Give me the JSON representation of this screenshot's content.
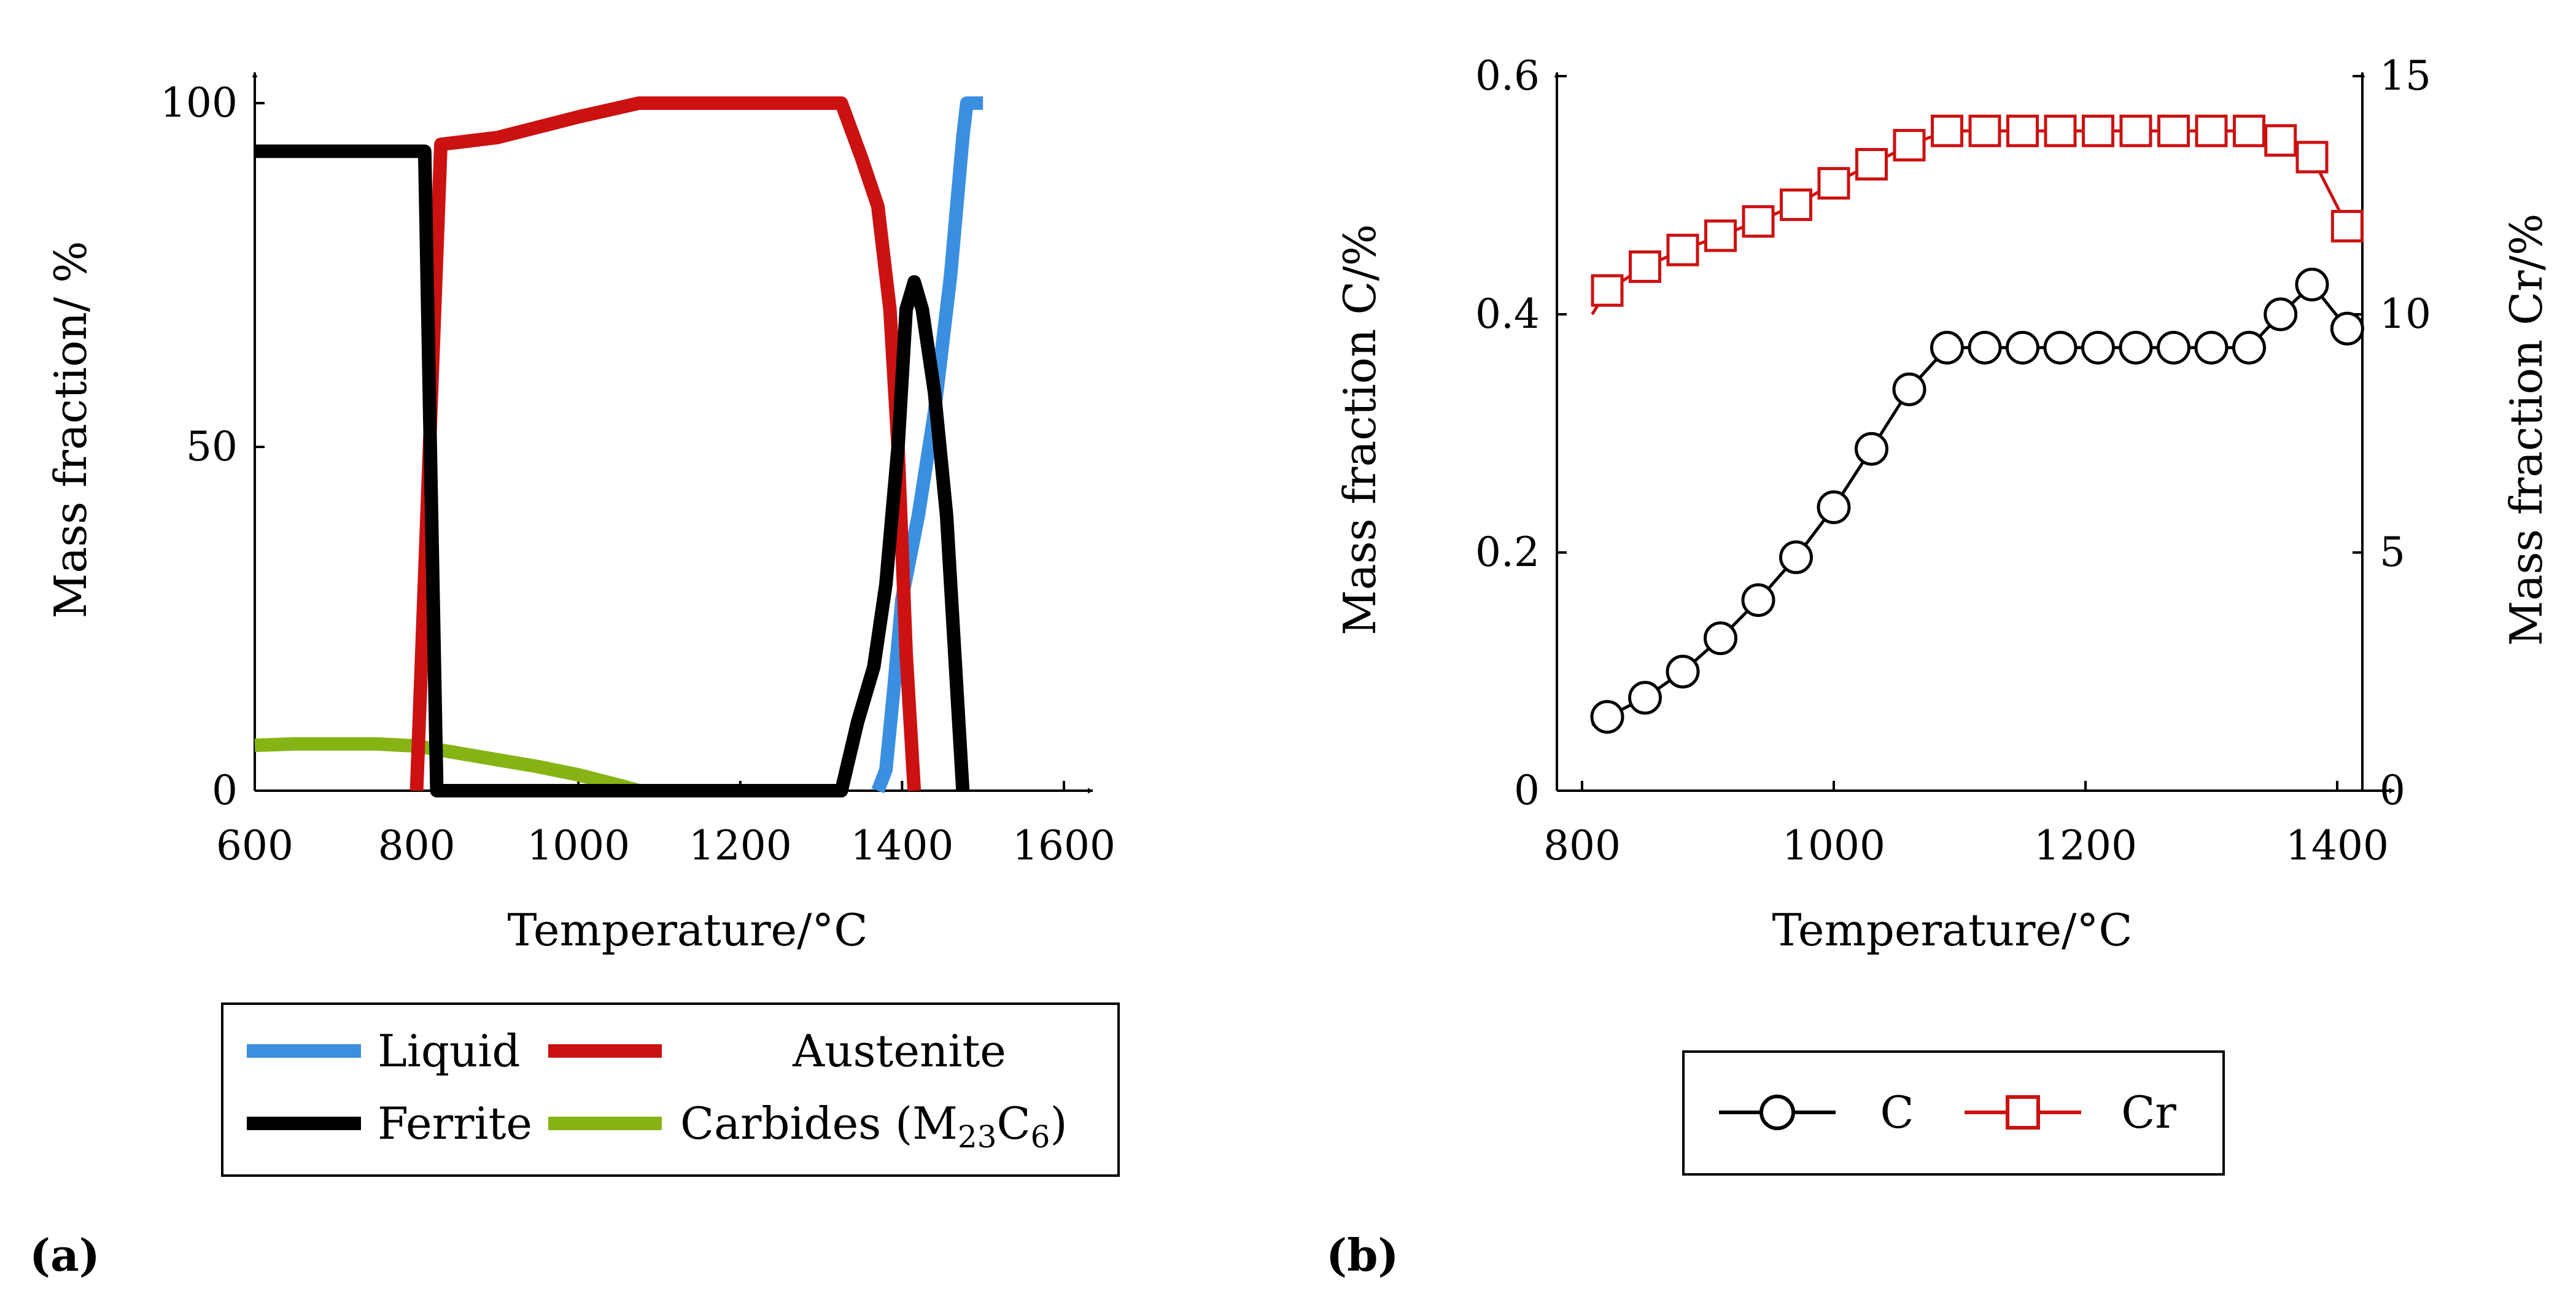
{
  "panels": {
    "a": "(a)",
    "b": "(b)"
  },
  "colors": {
    "liquid": "#3b8fe0",
    "austenite": "#cc1111",
    "ferrite": "#000000",
    "carbides": "#86b414",
    "c": "#000000",
    "cr": "#cc1111"
  },
  "chart_data": [
    {
      "type": "line",
      "xlabel": "Temperature/°C",
      "ylabel": "Mass fraction/ %",
      "xlim": [
        600,
        1600
      ],
      "ylim": [
        0,
        100
      ],
      "xticks": [
        600,
        800,
        1000,
        1200,
        1400,
        1600
      ],
      "yticks": [
        0,
        50,
        100
      ],
      "legend_position": "below",
      "series": [
        {
          "key": "liquid",
          "name": "Liquid",
          "x": [
            1370,
            1380,
            1390,
            1400,
            1420,
            1440,
            1460,
            1475,
            1480,
            1500
          ],
          "y": [
            0,
            3,
            15,
            28,
            40,
            55,
            75,
            95,
            100,
            100
          ]
        },
        {
          "key": "austenite",
          "name": "Austenite",
          "x": [
            800,
            830,
            900,
            1000,
            1075,
            1325,
            1350,
            1370,
            1385,
            1395,
            1405,
            1415
          ],
          "y": [
            0,
            94,
            95,
            98,
            100,
            100,
            92,
            85,
            70,
            50,
            20,
            0
          ]
        },
        {
          "key": "ferrite",
          "name": "Ferrite",
          "x": [
            600,
            800,
            810,
            825,
            1075,
            1325,
            1345,
            1365,
            1380,
            1395,
            1405,
            1415,
            1425,
            1440,
            1455,
            1475
          ],
          "y": [
            93,
            93,
            93,
            0,
            0,
            0,
            10,
            18,
            30,
            50,
            70,
            74,
            70,
            58,
            40,
            0
          ]
        },
        {
          "key": "carbides",
          "name": "Carbides (M23C6)",
          "x": [
            600,
            650,
            700,
            750,
            800,
            850,
            900,
            950,
            1000,
            1050,
            1075
          ],
          "y": [
            6.6,
            6.8,
            6.8,
            6.8,
            6.5,
            5.5,
            4.5,
            3.5,
            2.3,
            0.8,
            0
          ]
        }
      ],
      "legend": {
        "liquid": "Liquid",
        "austenite": "Austenite",
        "ferrite": "Ferrite",
        "carbides_main": "Carbides (M",
        "carbides_sub1": "23",
        "carbides_mid": "C",
        "carbides_sub2": "6",
        "carbides_end": ")"
      }
    },
    {
      "type": "line",
      "xlabel": "Temperature/°C",
      "ylabel_left": "Mass fraction C/%",
      "ylabel_right": "Mass fraction Cr/%",
      "xlim": [
        800,
        1400
      ],
      "ylim_left": [
        0,
        0.6
      ],
      "ylim_right": [
        0,
        15
      ],
      "xticks": [
        800,
        1000,
        1200,
        1400
      ],
      "yticks_left": [
        0,
        0.2,
        0.4,
        0.6
      ],
      "yticks_left_labels": [
        "0",
        "0.2",
        "0.4",
        "0.6"
      ],
      "yticks_right": [
        0,
        5,
        10,
        15
      ],
      "legend_position": "below",
      "series": [
        {
          "key": "c",
          "name": "C",
          "axis": "left",
          "marker": "circle",
          "x": [
            820,
            850,
            880,
            910,
            940,
            970,
            1000,
            1030,
            1060,
            1090,
            1120,
            1150,
            1180,
            1210,
            1240,
            1270,
            1300,
            1330,
            1355,
            1380,
            1408
          ],
          "y": [
            0.062,
            0.078,
            0.1,
            0.128,
            0.16,
            0.196,
            0.238,
            0.287,
            0.337,
            0.372,
            0.372,
            0.372,
            0.372,
            0.372,
            0.372,
            0.372,
            0.372,
            0.372,
            0.4,
            0.425,
            0.388
          ]
        },
        {
          "key": "cr",
          "name": "Cr",
          "axis": "right",
          "marker": "square",
          "x": [
            820,
            850,
            880,
            910,
            940,
            970,
            1000,
            1030,
            1060,
            1090,
            1120,
            1150,
            1180,
            1210,
            1240,
            1270,
            1300,
            1330,
            1355,
            1380,
            1408
          ],
          "y": [
            10.5,
            11.0,
            11.35,
            11.65,
            11.95,
            12.3,
            12.75,
            13.15,
            13.55,
            13.85,
            13.85,
            13.85,
            13.85,
            13.85,
            13.85,
            13.85,
            13.85,
            13.85,
            13.65,
            13.3,
            11.85
          ]
        }
      ],
      "legend": {
        "c": "C",
        "cr": "Cr"
      }
    }
  ]
}
